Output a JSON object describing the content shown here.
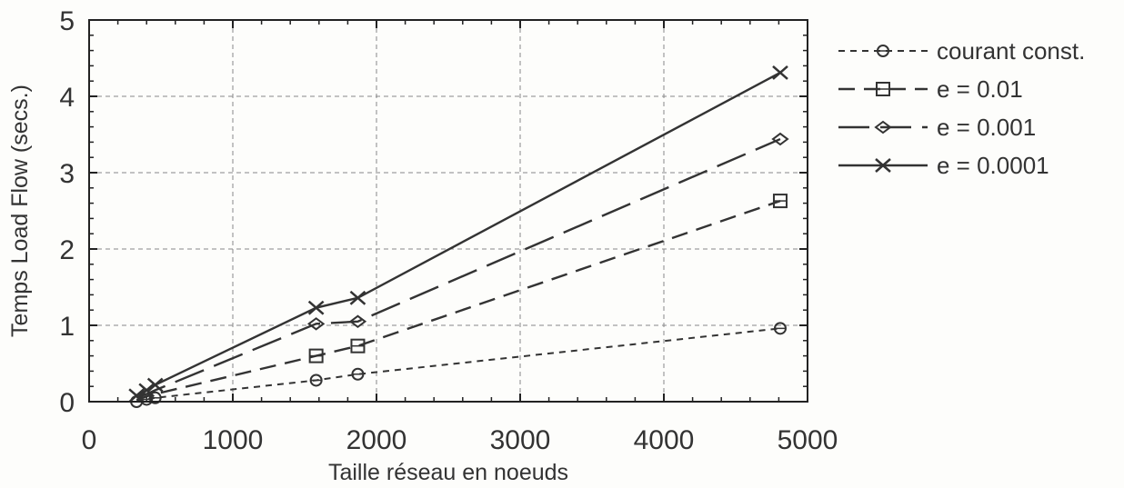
{
  "chart_data": {
    "type": "line",
    "title": "",
    "xlabel": "Taille réseau en noeuds",
    "ylabel": "Temps Load Flow (secs.)",
    "xlim": [
      0,
      5000
    ],
    "ylim": [
      0,
      5
    ],
    "xticks": [
      0,
      1000,
      2000,
      3000,
      4000,
      5000
    ],
    "yticks": [
      0,
      1,
      2,
      3,
      4,
      5
    ],
    "grid": true,
    "legend_position": "right",
    "series": [
      {
        "name": "courant const.",
        "marker": "circle",
        "dash": "short",
        "points": [
          [
            330,
            0.0
          ],
          [
            400,
            0.03
          ],
          [
            460,
            0.05
          ],
          [
            1580,
            0.28
          ],
          [
            1870,
            0.36
          ],
          [
            4810,
            0.96
          ]
        ]
      },
      {
        "name": "e = 0.01",
        "marker": "square",
        "dash": "medium",
        "points": [
          [
            330,
            0.02
          ],
          [
            400,
            0.07
          ],
          [
            460,
            0.1
          ],
          [
            1580,
            0.6
          ],
          [
            1870,
            0.73
          ],
          [
            4810,
            2.63
          ]
        ]
      },
      {
        "name": "e = 0.001",
        "marker": "diamond",
        "dash": "long",
        "points": [
          [
            330,
            0.05
          ],
          [
            400,
            0.1
          ],
          [
            460,
            0.15
          ],
          [
            1580,
            1.02
          ],
          [
            1870,
            1.05
          ],
          [
            4810,
            3.44
          ]
        ]
      },
      {
        "name": "e = 0.0001",
        "marker": "cross",
        "dash": "solid",
        "points": [
          [
            330,
            0.08
          ],
          [
            400,
            0.15
          ],
          [
            460,
            0.22
          ],
          [
            1580,
            1.23
          ],
          [
            1870,
            1.36
          ],
          [
            4810,
            4.31
          ]
        ]
      }
    ]
  }
}
